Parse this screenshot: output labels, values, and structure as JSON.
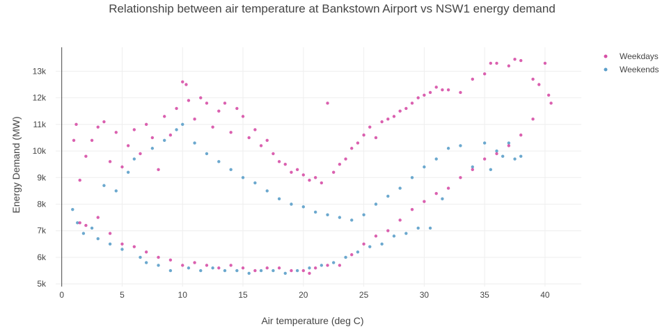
{
  "chart_data": {
    "type": "scatter",
    "title": "Relationship between air temperature at Bankstown Airport vs NSW1 energy demand",
    "xlabel": "Air temperature (deg C)",
    "ylabel": "Energy Demand (MW)",
    "xlim": [
      -0.5,
      43
    ],
    "ylim": [
      4900,
      13900
    ],
    "xticks": [
      0,
      5,
      10,
      15,
      20,
      25,
      30,
      35,
      40
    ],
    "yticks": [
      5000,
      6000,
      7000,
      8000,
      9000,
      10000,
      11000,
      12000,
      13000
    ],
    "yticklabels": [
      "5k",
      "6k",
      "7k",
      "8k",
      "9k",
      "10k",
      "11k",
      "12k",
      "13k"
    ],
    "grid": true,
    "legend": "top-right",
    "series": [
      {
        "name": "Weekdays",
        "color": "#d64fa6",
        "points": [
          [
            1.0,
            10400
          ],
          [
            1.2,
            11000
          ],
          [
            1.5,
            8900
          ],
          [
            2.0,
            9800
          ],
          [
            2.5,
            10400
          ],
          [
            3.0,
            10900
          ],
          [
            3.5,
            11100
          ],
          [
            4.0,
            9600
          ],
          [
            4.5,
            10700
          ],
          [
            5.0,
            9400
          ],
          [
            5.5,
            10200
          ],
          [
            6.0,
            10800
          ],
          [
            6.5,
            9900
          ],
          [
            7.0,
            11000
          ],
          [
            7.5,
            10500
          ],
          [
            8.0,
            9300
          ],
          [
            8.5,
            11300
          ],
          [
            9.0,
            10600
          ],
          [
            9.5,
            11600
          ],
          [
            10.0,
            12600
          ],
          [
            10.3,
            12500
          ],
          [
            10.5,
            11900
          ],
          [
            11.0,
            11200
          ],
          [
            11.5,
            12000
          ],
          [
            12.0,
            11800
          ],
          [
            12.5,
            10900
          ],
          [
            13.0,
            11500
          ],
          [
            13.5,
            11800
          ],
          [
            14.0,
            10700
          ],
          [
            14.5,
            11600
          ],
          [
            15.0,
            11300
          ],
          [
            15.5,
            10500
          ],
          [
            16.0,
            10800
          ],
          [
            16.5,
            10200
          ],
          [
            17.0,
            10400
          ],
          [
            17.5,
            9900
          ],
          [
            18.0,
            9600
          ],
          [
            18.5,
            9500
          ],
          [
            19.0,
            9200
          ],
          [
            19.5,
            9300
          ],
          [
            20.0,
            9100
          ],
          [
            20.5,
            8900
          ],
          [
            21.0,
            9000
          ],
          [
            21.5,
            8800
          ],
          [
            22.0,
            11800
          ],
          [
            22.5,
            9200
          ],
          [
            23.0,
            9500
          ],
          [
            23.5,
            9700
          ],
          [
            24.0,
            10100
          ],
          [
            24.5,
            10300
          ],
          [
            25.0,
            10600
          ],
          [
            25.5,
            10900
          ],
          [
            26.0,
            10500
          ],
          [
            26.5,
            11100
          ],
          [
            27.0,
            11200
          ],
          [
            27.5,
            11300
          ],
          [
            28.0,
            11500
          ],
          [
            28.5,
            11600
          ],
          [
            29.0,
            11800
          ],
          [
            29.5,
            12000
          ],
          [
            30.0,
            12100
          ],
          [
            30.5,
            12200
          ],
          [
            31.0,
            12400
          ],
          [
            31.5,
            12300
          ],
          [
            32.0,
            12300
          ],
          [
            33.0,
            12200
          ],
          [
            34.0,
            12700
          ],
          [
            35.0,
            12900
          ],
          [
            35.5,
            13300
          ],
          [
            36.0,
            13300
          ],
          [
            37.0,
            13200
          ],
          [
            37.5,
            13450
          ],
          [
            38.0,
            13400
          ],
          [
            39.0,
            12700
          ],
          [
            39.5,
            12500
          ],
          [
            40.0,
            13300
          ],
          [
            40.3,
            12100
          ],
          [
            40.5,
            11800
          ],
          [
            1.5,
            7300
          ],
          [
            2.0,
            7200
          ],
          [
            3.0,
            7500
          ],
          [
            4.0,
            6900
          ],
          [
            5.0,
            6500
          ],
          [
            6.0,
            6400
          ],
          [
            7.0,
            6200
          ],
          [
            8.0,
            6000
          ],
          [
            9.0,
            5900
          ],
          [
            10.0,
            5700
          ],
          [
            11.0,
            5800
          ],
          [
            12.0,
            5700
          ],
          [
            13.0,
            5600
          ],
          [
            14.0,
            5700
          ],
          [
            15.0,
            5600
          ],
          [
            16.0,
            5500
          ],
          [
            17.0,
            5600
          ],
          [
            18.0,
            5600
          ],
          [
            19.0,
            5500
          ],
          [
            20.0,
            5500
          ],
          [
            20.5,
            5400
          ],
          [
            21.0,
            5600
          ],
          [
            22.0,
            5700
          ],
          [
            23.0,
            5700
          ],
          [
            24.0,
            6100
          ],
          [
            25.0,
            6500
          ],
          [
            26.0,
            6800
          ],
          [
            27.0,
            7000
          ],
          [
            28.0,
            7400
          ],
          [
            29.0,
            7800
          ],
          [
            30.0,
            8100
          ],
          [
            31.0,
            8400
          ],
          [
            32.0,
            8600
          ],
          [
            33.0,
            9000
          ],
          [
            34.0,
            9300
          ],
          [
            35.0,
            9700
          ],
          [
            36.0,
            9900
          ],
          [
            37.0,
            10200
          ],
          [
            38.0,
            10600
          ],
          [
            39.0,
            11200
          ]
        ]
      },
      {
        "name": "Weekends",
        "color": "#5b9ec9",
        "points": [
          [
            0.9,
            7800
          ],
          [
            1.3,
            7300
          ],
          [
            1.8,
            6900
          ],
          [
            2.5,
            7100
          ],
          [
            3.0,
            6700
          ],
          [
            3.5,
            8700
          ],
          [
            4.0,
            6500
          ],
          [
            4.5,
            8500
          ],
          [
            5.0,
            6300
          ],
          [
            5.5,
            9200
          ],
          [
            6.0,
            9700
          ],
          [
            6.5,
            6000
          ],
          [
            7.0,
            5800
          ],
          [
            7.5,
            10100
          ],
          [
            8.0,
            5700
          ],
          [
            8.5,
            10400
          ],
          [
            9.0,
            5500
          ],
          [
            9.5,
            10800
          ],
          [
            10.0,
            11000
          ],
          [
            10.5,
            5600
          ],
          [
            11.0,
            10300
          ],
          [
            11.5,
            5500
          ],
          [
            12.0,
            9900
          ],
          [
            12.5,
            5600
          ],
          [
            13.0,
            9600
          ],
          [
            13.5,
            5500
          ],
          [
            14.0,
            9300
          ],
          [
            14.5,
            5500
          ],
          [
            15.0,
            9000
          ],
          [
            15.5,
            5400
          ],
          [
            16.0,
            8800
          ],
          [
            16.5,
            5500
          ],
          [
            17.0,
            8500
          ],
          [
            17.5,
            5500
          ],
          [
            18.0,
            8200
          ],
          [
            18.5,
            5400
          ],
          [
            19.0,
            8000
          ],
          [
            19.5,
            5500
          ],
          [
            20.0,
            7900
          ],
          [
            20.5,
            5600
          ],
          [
            21.0,
            7700
          ],
          [
            21.5,
            5700
          ],
          [
            22.0,
            7600
          ],
          [
            22.5,
            5800
          ],
          [
            23.0,
            7500
          ],
          [
            23.5,
            6000
          ],
          [
            24.0,
            7400
          ],
          [
            24.5,
            6200
          ],
          [
            25.0,
            7600
          ],
          [
            25.5,
            6400
          ],
          [
            26.0,
            8000
          ],
          [
            26.5,
            6500
          ],
          [
            27.0,
            8300
          ],
          [
            27.5,
            6800
          ],
          [
            28.0,
            8600
          ],
          [
            28.5,
            6900
          ],
          [
            29.0,
            9000
          ],
          [
            29.5,
            7100
          ],
          [
            30.0,
            9400
          ],
          [
            30.5,
            7100
          ],
          [
            31.0,
            9700
          ],
          [
            31.5,
            8200
          ],
          [
            32.0,
            10100
          ],
          [
            33.0,
            10200
          ],
          [
            34.0,
            9400
          ],
          [
            35.0,
            10300
          ],
          [
            35.5,
            9300
          ],
          [
            36.0,
            10000
          ],
          [
            36.5,
            9800
          ],
          [
            37.0,
            10300
          ],
          [
            37.5,
            9700
          ],
          [
            38.0,
            9800
          ]
        ]
      }
    ]
  }
}
